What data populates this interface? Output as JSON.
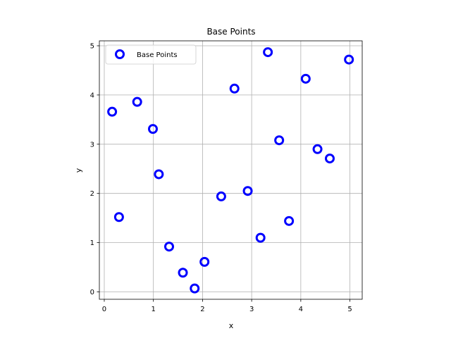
{
  "chart_data": {
    "type": "scatter",
    "title": "Base Points",
    "xlabel": "x",
    "ylabel": "y",
    "xlim": [
      -0.1,
      5.25
    ],
    "ylim": [
      -0.15,
      5.1
    ],
    "xticks": [
      0,
      1,
      2,
      3,
      4,
      5
    ],
    "yticks": [
      0,
      1,
      2,
      3,
      4,
      5
    ],
    "grid": true,
    "legend_position": "top-left",
    "series": [
      {
        "name": "Base Points",
        "color": "#0000ff",
        "marker": "hollow-circle",
        "points": [
          {
            "x": 0.16,
            "y": 3.66
          },
          {
            "x": 0.3,
            "y": 1.52
          },
          {
            "x": 0.67,
            "y": 3.86
          },
          {
            "x": 0.99,
            "y": 3.31
          },
          {
            "x": 1.11,
            "y": 2.39
          },
          {
            "x": 1.32,
            "y": 0.92
          },
          {
            "x": 1.6,
            "y": 0.39
          },
          {
            "x": 1.84,
            "y": 0.07
          },
          {
            "x": 2.04,
            "y": 0.61
          },
          {
            "x": 2.38,
            "y": 1.94
          },
          {
            "x": 2.65,
            "y": 4.13
          },
          {
            "x": 2.92,
            "y": 2.05
          },
          {
            "x": 3.18,
            "y": 1.1
          },
          {
            "x": 3.33,
            "y": 4.87
          },
          {
            "x": 3.56,
            "y": 3.08
          },
          {
            "x": 3.76,
            "y": 1.44
          },
          {
            "x": 4.1,
            "y": 4.33
          },
          {
            "x": 4.34,
            "y": 2.9
          },
          {
            "x": 4.59,
            "y": 2.71
          },
          {
            "x": 4.98,
            "y": 4.72
          }
        ]
      }
    ]
  }
}
